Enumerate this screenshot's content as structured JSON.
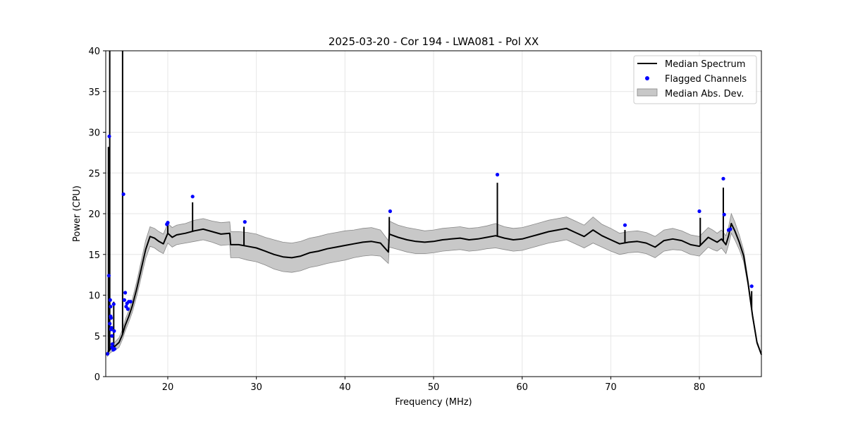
{
  "chart_data": {
    "type": "line",
    "title": "2025-03-20 - Cor 194 - LWA081 - Pol XX",
    "xlabel": "Frequency (MHz)",
    "ylabel": "Power (CPU)",
    "xlim": [
      13.0,
      87.0
    ],
    "ylim": [
      0,
      40
    ],
    "grid": true,
    "legend_position": "upper-right",
    "xticks": [
      20,
      30,
      40,
      50,
      60,
      70,
      80
    ],
    "yticks": [
      0,
      5,
      10,
      15,
      20,
      25,
      30,
      35,
      40
    ],
    "legend": [
      {
        "label": "Median Spectrum",
        "kind": "line"
      },
      {
        "label": "Flagged Channels",
        "kind": "dot"
      },
      {
        "label": "Median Abs. Dev.",
        "kind": "patch"
      }
    ],
    "colors": {
      "line": "#000000",
      "flag": "#0000ff",
      "band": "#c8c8c8",
      "band_edge": "#888888",
      "grid": "#e6e6e6"
    },
    "series": [
      {
        "name": "Median Spectrum",
        "x": [
          13.2,
          13.4,
          13.6,
          13.8,
          14.0,
          14.5,
          14.9,
          15.2,
          15.6,
          16.0,
          16.5,
          17.0,
          17.5,
          18.0,
          18.5,
          19.0,
          19.5,
          20.0,
          20.5,
          21.0,
          22.0,
          23.0,
          24.0,
          25.0,
          26.0,
          27.0,
          27.1,
          28.0,
          29.0,
          30.0,
          31.0,
          32.0,
          33.0,
          34.0,
          35.0,
          36.0,
          37.0,
          38.0,
          39.0,
          40.0,
          41.0,
          42.0,
          43.0,
          44.0,
          44.9,
          45.0,
          46.0,
          47.0,
          48.0,
          49.0,
          50.0,
          51.0,
          52.0,
          53.0,
          54.0,
          55.0,
          56.0,
          57.0,
          58.0,
          59.0,
          60.0,
          61.0,
          62.0,
          63.0,
          64.0,
          65.0,
          66.0,
          67.0,
          68.0,
          69.0,
          70.0,
          71.0,
          72.0,
          73.0,
          74.0,
          75.0,
          76.0,
          77.0,
          78.0,
          79.0,
          80.0,
          81.0,
          81.5,
          82.0,
          82.5,
          83.0,
          83.3,
          83.6,
          84.0,
          84.5,
          85.0,
          85.5,
          86.0,
          86.5,
          87.0
        ],
        "y": [
          2.8,
          3.2,
          3.5,
          3.6,
          3.7,
          4.2,
          5.2,
          6.3,
          7.4,
          8.7,
          10.8,
          13.2,
          15.6,
          17.2,
          17.0,
          16.6,
          16.3,
          17.6,
          17.1,
          17.4,
          17.6,
          17.9,
          18.1,
          17.8,
          17.5,
          17.6,
          16.2,
          16.2,
          16.0,
          15.8,
          15.4,
          15.0,
          14.7,
          14.6,
          14.8,
          15.2,
          15.4,
          15.7,
          15.9,
          16.1,
          16.3,
          16.5,
          16.6,
          16.4,
          15.3,
          17.5,
          17.1,
          16.8,
          16.6,
          16.5,
          16.6,
          16.8,
          16.9,
          17.0,
          16.8,
          16.9,
          17.1,
          17.3,
          17.0,
          16.8,
          16.9,
          17.2,
          17.5,
          17.8,
          18.0,
          18.2,
          17.7,
          17.2,
          18.0,
          17.3,
          16.8,
          16.3,
          16.5,
          16.6,
          16.4,
          15.9,
          16.7,
          16.9,
          16.7,
          16.2,
          16.0,
          17.1,
          16.8,
          16.5,
          16.9,
          16.2,
          17.3,
          18.8,
          17.9,
          16.5,
          14.8,
          11.5,
          7.5,
          4.2,
          2.7
        ],
        "spread": [
          0.3,
          0.4,
          0.5,
          0.5,
          0.5,
          0.6,
          0.6,
          0.7,
          0.7,
          0.8,
          0.9,
          1.0,
          1.1,
          1.2,
          1.2,
          1.2,
          1.2,
          1.2,
          1.2,
          1.2,
          1.2,
          1.3,
          1.3,
          1.3,
          1.4,
          1.4,
          1.6,
          1.6,
          1.7,
          1.7,
          1.7,
          1.8,
          1.8,
          1.8,
          1.8,
          1.8,
          1.8,
          1.8,
          1.8,
          1.8,
          1.7,
          1.7,
          1.7,
          1.6,
          1.4,
          1.6,
          1.5,
          1.5,
          1.5,
          1.4,
          1.4,
          1.4,
          1.4,
          1.4,
          1.4,
          1.4,
          1.4,
          1.5,
          1.4,
          1.4,
          1.4,
          1.4,
          1.4,
          1.4,
          1.4,
          1.4,
          1.4,
          1.4,
          1.6,
          1.4,
          1.4,
          1.3,
          1.3,
          1.3,
          1.3,
          1.3,
          1.3,
          1.3,
          1.2,
          1.2,
          1.2,
          1.2,
          1.2,
          1.1,
          1.1,
          1.1,
          1.1,
          1.2,
          1.1,
          0.9,
          0.7,
          0.4,
          0.3,
          0.2,
          0.1
        ]
      }
    ],
    "spikes": [
      {
        "x": 13.3,
        "top": 28.2
      },
      {
        "x": 13.45,
        "top": 40.0
      },
      {
        "x": 13.9,
        "top": 9.2
      },
      {
        "x": 14.9,
        "top": 40.0
      },
      {
        "x": 20.0,
        "top": 19.1
      },
      {
        "x": 22.8,
        "top": 21.4
      },
      {
        "x": 28.6,
        "top": 18.4
      },
      {
        "x": 45.0,
        "top": 19.6
      },
      {
        "x": 57.2,
        "top": 23.8
      },
      {
        "x": 71.6,
        "top": 18.0
      },
      {
        "x": 80.1,
        "top": 19.5
      },
      {
        "x": 82.7,
        "top": 23.2
      },
      {
        "x": 85.9,
        "top": 10.5
      }
    ],
    "flagged_channels": {
      "x": [
        13.2,
        13.35,
        13.4,
        13.5,
        13.55,
        13.6,
        13.65,
        13.7,
        13.75,
        13.8,
        13.85,
        13.9,
        13.95,
        14.0,
        13.45,
        13.6,
        13.7,
        13.55,
        15.0,
        15.1,
        15.2,
        15.3,
        15.4,
        15.5,
        15.6,
        15.8,
        19.9,
        20.0,
        22.8,
        28.7,
        45.1,
        57.2,
        71.6,
        80.0,
        82.7,
        82.8,
        83.3,
        83.5,
        85.9
      ],
      "y": [
        2.8,
        12.4,
        29.5,
        9.4,
        8.6,
        7.2,
        6.0,
        5.0,
        4.0,
        3.5,
        3.3,
        8.9,
        5.6,
        3.4,
        6.5,
        5.8,
        3.6,
        7.4,
        22.4,
        9.4,
        10.3,
        8.6,
        9.0,
        8.3,
        9.2,
        9.2,
        18.7,
        18.9,
        22.1,
        19.0,
        20.3,
        24.8,
        18.6,
        20.3,
        24.3,
        19.9,
        18.0,
        18.1,
        11.1
      ]
    }
  }
}
